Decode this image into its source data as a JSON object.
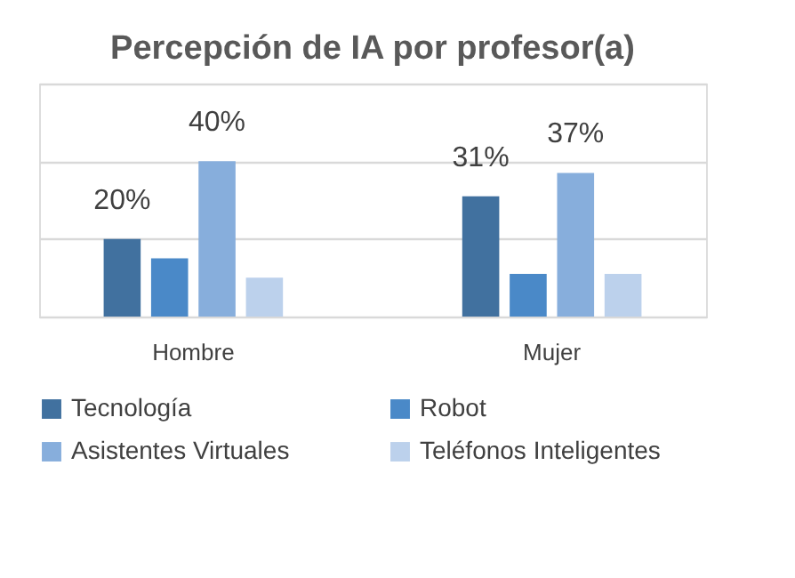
{
  "chart_data": {
    "type": "bar",
    "title": "Percepción de IA por profesor(a)",
    "categories": [
      "Hombre",
      "Mujer"
    ],
    "series": [
      {
        "name": "Tecnología",
        "color": "#41719f",
        "values": [
          20,
          31
        ],
        "value_labels": [
          "20%",
          "31%"
        ]
      },
      {
        "name": "Robot",
        "color": "#4a89c8",
        "values": [
          15,
          11
        ],
        "value_labels": [
          null,
          null
        ]
      },
      {
        "name": "Asistentes Virtuales",
        "color": "#87aedc",
        "values": [
          40,
          37
        ],
        "value_labels": [
          "40%",
          "37%"
        ]
      },
      {
        "name": "Teléfonos Inteligentes",
        "color": "#bcd1ec",
        "values": [
          10,
          11
        ],
        "value_labels": [
          null,
          null
        ]
      }
    ],
    "ylim": [
      0,
      60
    ],
    "yticks": [
      {
        "value": 0,
        "label": null
      },
      {
        "value": 20,
        "label": null
      },
      {
        "value": 40,
        "label": null
      },
      {
        "value": 60,
        "label": null
      }
    ],
    "tick_labels": "x",
    "grid": "y",
    "legend": "bottom"
  }
}
